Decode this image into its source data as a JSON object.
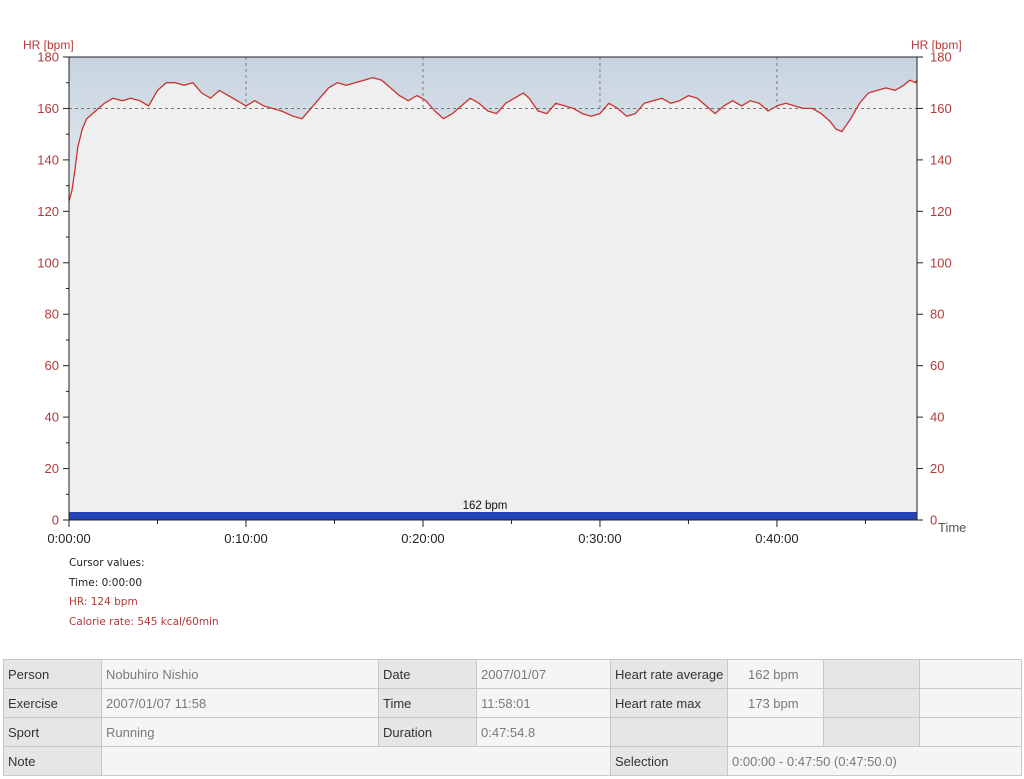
{
  "chart_data": {
    "type": "line",
    "ylabel": "HR [bpm]",
    "ylabel_right": "HR [bpm]",
    "xlabel": "Time",
    "ylim": [
      0,
      180
    ],
    "y_ticks": [
      0,
      20,
      40,
      60,
      80,
      100,
      120,
      140,
      160,
      180
    ],
    "xlim_seconds": [
      0,
      2874.8
    ],
    "x_tick_labels": [
      "0:00:00",
      "0:10:00",
      "0:20:00",
      "0:30:00",
      "0:40:00"
    ],
    "x_tick_seconds": [
      0,
      600,
      1200,
      1800,
      2400
    ],
    "zone_band": [
      160,
      180
    ],
    "average_bar": {
      "label": "162 bpm",
      "value": 162
    },
    "series": [
      {
        "name": "HR",
        "color": "#c83232",
        "points": [
          [
            0,
            124
          ],
          [
            10,
            128
          ],
          [
            20,
            136
          ],
          [
            30,
            145
          ],
          [
            45,
            152
          ],
          [
            60,
            156
          ],
          [
            80,
            158
          ],
          [
            100,
            160
          ],
          [
            120,
            162
          ],
          [
            150,
            164
          ],
          [
            180,
            163
          ],
          [
            210,
            164
          ],
          [
            240,
            163
          ],
          [
            270,
            161
          ],
          [
            300,
            167
          ],
          [
            330,
            170
          ],
          [
            360,
            170
          ],
          [
            390,
            169
          ],
          [
            420,
            170
          ],
          [
            450,
            166
          ],
          [
            480,
            164
          ],
          [
            510,
            167
          ],
          [
            540,
            165
          ],
          [
            570,
            163
          ],
          [
            600,
            161
          ],
          [
            630,
            163
          ],
          [
            660,
            161
          ],
          [
            690,
            160
          ],
          [
            720,
            159
          ],
          [
            760,
            157
          ],
          [
            790,
            156
          ],
          [
            820,
            160
          ],
          [
            850,
            164
          ],
          [
            880,
            168
          ],
          [
            910,
            170
          ],
          [
            940,
            169
          ],
          [
            970,
            170
          ],
          [
            1000,
            171
          ],
          [
            1030,
            172
          ],
          [
            1060,
            171
          ],
          [
            1090,
            168
          ],
          [
            1120,
            165
          ],
          [
            1150,
            163
          ],
          [
            1180,
            165
          ],
          [
            1210,
            163
          ],
          [
            1240,
            159
          ],
          [
            1270,
            156
          ],
          [
            1300,
            158
          ],
          [
            1330,
            161
          ],
          [
            1360,
            164
          ],
          [
            1390,
            162
          ],
          [
            1420,
            159
          ],
          [
            1450,
            158
          ],
          [
            1480,
            162
          ],
          [
            1510,
            164
          ],
          [
            1540,
            166
          ],
          [
            1560,
            164
          ],
          [
            1590,
            159
          ],
          [
            1620,
            158
          ],
          [
            1650,
            162
          ],
          [
            1680,
            161
          ],
          [
            1710,
            160
          ],
          [
            1740,
            158
          ],
          [
            1770,
            157
          ],
          [
            1800,
            158
          ],
          [
            1830,
            162
          ],
          [
            1860,
            160
          ],
          [
            1890,
            157
          ],
          [
            1920,
            158
          ],
          [
            1950,
            162
          ],
          [
            1980,
            163
          ],
          [
            2010,
            164
          ],
          [
            2040,
            162
          ],
          [
            2070,
            163
          ],
          [
            2100,
            165
          ],
          [
            2130,
            164
          ],
          [
            2160,
            161
          ],
          [
            2190,
            158
          ],
          [
            2220,
            161
          ],
          [
            2250,
            163
          ],
          [
            2280,
            161
          ],
          [
            2310,
            163
          ],
          [
            2340,
            162
          ],
          [
            2370,
            159
          ],
          [
            2400,
            161
          ],
          [
            2430,
            162
          ],
          [
            2460,
            161
          ],
          [
            2490,
            160
          ],
          [
            2520,
            160
          ],
          [
            2550,
            158
          ],
          [
            2580,
            155
          ],
          [
            2600,
            152
          ],
          [
            2620,
            151
          ],
          [
            2650,
            156
          ],
          [
            2680,
            162
          ],
          [
            2710,
            166
          ],
          [
            2740,
            167
          ],
          [
            2770,
            168
          ],
          [
            2800,
            167
          ],
          [
            2830,
            169
          ],
          [
            2850,
            171
          ],
          [
            2870,
            170
          ],
          [
            2874,
            171
          ]
        ]
      }
    ]
  },
  "cursor": {
    "heading": "Cursor values:",
    "time": "Time: 0:00:00",
    "hr": "HR: 124 bpm",
    "calorie": "Calorie rate: 545 kcal/60min"
  },
  "info": {
    "person_label": "Person",
    "person": "Nobuhiro Nishio",
    "date_label": "Date",
    "date": "2007/01/07",
    "hr_avg_label": "Heart rate average",
    "hr_avg": "162 bpm",
    "exercise_label": "Exercise",
    "exercise": "2007/01/07 11:58",
    "time_label": "Time",
    "time": "11:58:01",
    "hr_max_label": "Heart rate max",
    "hr_max": "173 bpm",
    "sport_label": "Sport",
    "sport": "Running",
    "duration_label": "Duration",
    "duration": "0:47:54.8",
    "note_label": "Note",
    "selection_label": "Selection",
    "selection": "0:00:00 - 0:47:50 (0:47:50.0)"
  }
}
